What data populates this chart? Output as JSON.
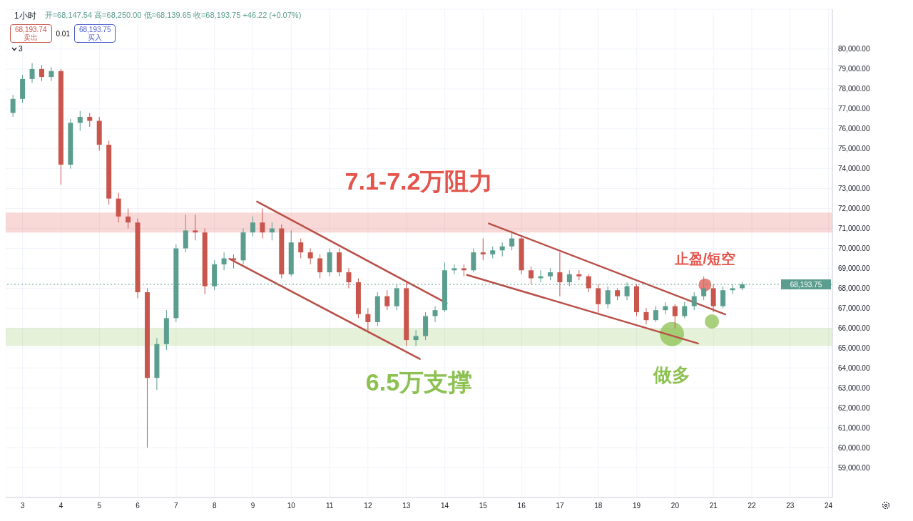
{
  "chart_data": {
    "type": "candlestick",
    "annotations": [
      "1小时",
      "开=68,147.54 高=68,250.00 低=68,139.65 收=68,193.75 +46.22 (+0.07%)",
      "68,193.74",
      "卖出",
      "0.01",
      "68,193.75",
      "买入",
      "3",
      {
        "text": "止盈/短空",
        "x": 20.78,
        "y": 68170
      },
      {
        "text": "做多",
        "x": 19.92,
        "y": 65700
      }
    ],
    "x": [
      2.75,
      3,
      3.25,
      3.5,
      3.75,
      4,
      4.25,
      4.5,
      4.75,
      5,
      5.25,
      5.5,
      5.75,
      6,
      6.25,
      6.5,
      6.75,
      7,
      7.25,
      7.5,
      7.75,
      8,
      8.25,
      8.5,
      8.75,
      9,
      9.25,
      9.5,
      9.75,
      10,
      10.25,
      10.5,
      10.75,
      11,
      11.25,
      11.5,
      11.75,
      12,
      12.25,
      12.5,
      12.75,
      13,
      13.25,
      13.5,
      13.75,
      14,
      14.25,
      14.5,
      14.75,
      15,
      15.25,
      15.5,
      15.75,
      16,
      16.25,
      16.5,
      16.75,
      17,
      17.25,
      17.5,
      17.75,
      18,
      18.25,
      18.5,
      18.75,
      19,
      19.25,
      19.5,
      19.75,
      20,
      20.25,
      20.5,
      20.75,
      21,
      21.25,
      21.5,
      21.75
    ],
    "ohlc": [
      [
        76800,
        77700,
        76600,
        77500
      ],
      [
        77500,
        78700,
        77300,
        78500
      ],
      [
        78500,
        79300,
        78300,
        79000
      ],
      [
        79000,
        79200,
        78400,
        78600
      ],
      [
        78600,
        79100,
        78400,
        78900
      ],
      [
        78900,
        79000,
        73200,
        74200
      ],
      [
        74200,
        76500,
        74000,
        76300
      ],
      [
        76300,
        76900,
        75900,
        76600
      ],
      [
        76600,
        76800,
        76100,
        76400
      ],
      [
        76400,
        76600,
        74900,
        75200
      ],
      [
        75200,
        75400,
        72200,
        72500
      ],
      [
        72500,
        72800,
        71300,
        71600
      ],
      [
        71600,
        72000,
        71000,
        71300
      ],
      [
        71300,
        71500,
        67500,
        67800
      ],
      [
        67800,
        68000,
        60000,
        63500
      ],
      [
        63500,
        65500,
        62900,
        65200
      ],
      [
        65200,
        66900,
        64900,
        66500
      ],
      [
        66500,
        70200,
        66300,
        70000
      ],
      [
        70000,
        71700,
        69800,
        70900
      ],
      [
        70900,
        71700,
        70400,
        70800
      ],
      [
        70800,
        71000,
        67700,
        68100
      ],
      [
        68100,
        69400,
        67900,
        69200
      ],
      [
        69200,
        69800,
        68900,
        69500
      ],
      [
        69500,
        69700,
        69000,
        69400
      ],
      [
        69400,
        71000,
        69200,
        70800
      ],
      [
        70800,
        71600,
        70600,
        71300
      ],
      [
        71300,
        72000,
        70500,
        70800
      ],
      [
        70800,
        71300,
        70400,
        71000
      ],
      [
        71000,
        71200,
        68500,
        68700
      ],
      [
        68700,
        70900,
        68600,
        70300
      ],
      [
        70300,
        70500,
        69500,
        69800
      ],
      [
        69800,
        70000,
        69200,
        69500
      ],
      [
        69500,
        69700,
        68500,
        68800
      ],
      [
        68800,
        70000,
        68600,
        69800
      ],
      [
        69800,
        70000,
        68600,
        68800
      ],
      [
        68800,
        69000,
        68000,
        68300
      ],
      [
        68300,
        68500,
        66500,
        66700
      ],
      [
        66700,
        67000,
        65800,
        66300
      ],
      [
        66300,
        67800,
        66100,
        67600
      ],
      [
        67600,
        67900,
        66900,
        67100
      ],
      [
        67100,
        68200,
        66900,
        68000
      ],
      [
        68000,
        68300,
        65100,
        65400
      ],
      [
        65400,
        65900,
        65100,
        65600
      ],
      [
        65600,
        66800,
        65400,
        66600
      ],
      [
        66600,
        67100,
        66300,
        66900
      ],
      [
        66900,
        69300,
        66800,
        68900
      ],
      [
        68900,
        69200,
        68700,
        69000
      ],
      [
        69000,
        69200,
        68600,
        68900
      ],
      [
        68900,
        70000,
        68800,
        69800
      ],
      [
        69800,
        70500,
        69400,
        69700
      ],
      [
        69700,
        70100,
        69500,
        69900
      ],
      [
        69900,
        70300,
        69600,
        70100
      ],
      [
        70100,
        70900,
        69900,
        70500
      ],
      [
        70500,
        70600,
        68700,
        68900
      ],
      [
        68900,
        69100,
        68200,
        68500
      ],
      [
        68500,
        68900,
        68300,
        68600
      ],
      [
        68600,
        69000,
        68400,
        68800
      ],
      [
        68800,
        69800,
        67600,
        68300
      ],
      [
        68300,
        68900,
        68100,
        68700
      ],
      [
        68700,
        68900,
        68400,
        68600
      ],
      [
        68600,
        68700,
        67800,
        68000
      ],
      [
        68000,
        68200,
        66700,
        67200
      ],
      [
        67200,
        68100,
        67000,
        67900
      ],
      [
        67900,
        68000,
        67400,
        67600
      ],
      [
        67600,
        68300,
        67400,
        68100
      ],
      [
        68100,
        68200,
        66600,
        66800
      ],
      [
        66800,
        67000,
        66200,
        66400
      ],
      [
        66400,
        67100,
        66300,
        66900
      ],
      [
        66900,
        67300,
        66700,
        67100
      ],
      [
        67100,
        67200,
        66000,
        66600
      ],
      [
        66600,
        67300,
        66500,
        67100
      ],
      [
        67100,
        67800,
        66900,
        67600
      ],
      [
        67600,
        68600,
        67400,
        68000
      ],
      [
        68000,
        68200,
        66800,
        67100
      ],
      [
        67100,
        68100,
        67000,
        67900
      ],
      [
        67900,
        68200,
        67700,
        68000
      ],
      [
        68000,
        68300,
        67900,
        68200
      ]
    ],
    "series": [
      {
        "type": "line",
        "color": "#b95048",
        "x": [
          9.11,
          14.05
        ],
        "values": [
          72350,
          67250
        ]
      },
      {
        "type": "line",
        "color": "#b95048",
        "x": [
          8.39,
          13.35
        ],
        "values": [
          69480,
          64450
        ]
      },
      {
        "type": "line",
        "color": "#b95048",
        "x": [
          15.15,
          21.31
        ],
        "values": [
          71250,
          66690
        ]
      },
      {
        "type": "line",
        "color": "#b95048",
        "x": [
          14.58,
          20.6
        ],
        "values": [
          68670,
          65230
        ]
      },
      {
        "type": "bubble",
        "x": [
          20.78,
          19.92,
          20.96
        ],
        "values": [
          68170,
          65700,
          66330
        ],
        "sizes": [
          0.28,
          1,
          0.35
        ],
        "colors": [
          "#e5544b",
          "#8cc152",
          "#8cc152"
        ]
      }
    ],
    "bands": [
      {
        "axis": "y",
        "from": 70800,
        "to": 71800,
        "label": "7.1-7.2万阻力",
        "color": "#e5544b"
      },
      {
        "axis": "y",
        "from": 65100,
        "to": 66000,
        "label": "6.5万支撑",
        "color": "#8cc152"
      }
    ],
    "ref_lines": [
      {
        "axis": "y",
        "value": 68193.75,
        "label": "68,193.75",
        "color": "#5b9e8f",
        "line_style": "dotted"
      }
    ],
    "xlim": [
      2.56,
      24.1
    ],
    "xticks": [
      3,
      4,
      5,
      6,
      7,
      8,
      9,
      10,
      11,
      12,
      13,
      14,
      15,
      16,
      17,
      18,
      19,
      20,
      21,
      22,
      23,
      24
    ],
    "ylim": [
      57500,
      82000
    ],
    "yticks": [
      {
        "value": 59000,
        "label": "59,000.00"
      },
      {
        "value": 60000,
        "label": "60,000.00"
      },
      {
        "value": 61000,
        "label": "61,000.00"
      },
      {
        "value": 62000,
        "label": "62,000.00"
      },
      {
        "value": 63000,
        "label": "63,000.00"
      },
      {
        "value": 64000,
        "label": "64,000.00"
      },
      {
        "value": 65000,
        "label": "65,000.00"
      },
      {
        "value": 66000,
        "label": "66,000.00"
      },
      {
        "value": 67000,
        "label": "67,000.00"
      },
      {
        "value": 68000,
        "label": "68,000.00"
      },
      {
        "value": 69000,
        "label": "69,000.00"
      },
      {
        "value": 70000,
        "label": "70,000.00"
      },
      {
        "value": 71000,
        "label": "71,000.00"
      },
      {
        "value": 72000,
        "label": "72,000.00"
      },
      {
        "value": 73000,
        "label": "73,000.00"
      },
      {
        "value": 74000,
        "label": "74,000.00"
      },
      {
        "value": 75000,
        "label": "75,000.00"
      },
      {
        "value": 76000,
        "label": "76,000.00"
      },
      {
        "value": 77000,
        "label": "77,000.00"
      },
      {
        "value": 78000,
        "label": "78,000.00"
      },
      {
        "value": 79000,
        "label": "79,000.00"
      },
      {
        "value": 80000,
        "label": "80,000.00"
      }
    ],
    "grid": true
  }
}
